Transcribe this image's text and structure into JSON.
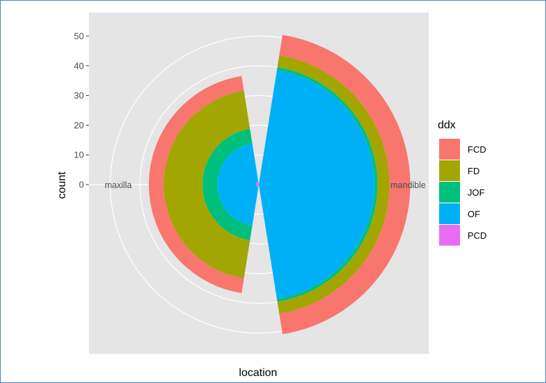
{
  "chart_data": {
    "type": "bar",
    "coord": "polar",
    "xlabel": "location",
    "ylabel": "count",
    "categories": [
      "maxilla",
      "mandible"
    ],
    "series": [
      {
        "name": "FCD",
        "color": "#F8766D",
        "values": [
          5,
          7
        ]
      },
      {
        "name": "FD",
        "color": "#A3A500",
        "values": [
          13,
          4
        ]
      },
      {
        "name": "JOF",
        "color": "#00BF7D",
        "values": [
          5,
          1
        ]
      },
      {
        "name": "OF",
        "color": "#00B0F6",
        "values": [
          13,
          39
        ]
      },
      {
        "name": "PCD",
        "color": "#E76BF3",
        "values": [
          1,
          0
        ]
      }
    ],
    "stack_order_from_center": [
      "PCD",
      "OF",
      "JOF",
      "FD",
      "FCD"
    ],
    "ylim": [
      0,
      57
    ],
    "yticks": [
      0,
      10,
      20,
      30,
      40,
      50
    ],
    "legend": {
      "title": "ddx",
      "position": "right"
    },
    "grid": true,
    "panel_background": "#E5E5E5",
    "grid_color": "#FFFFFF"
  }
}
